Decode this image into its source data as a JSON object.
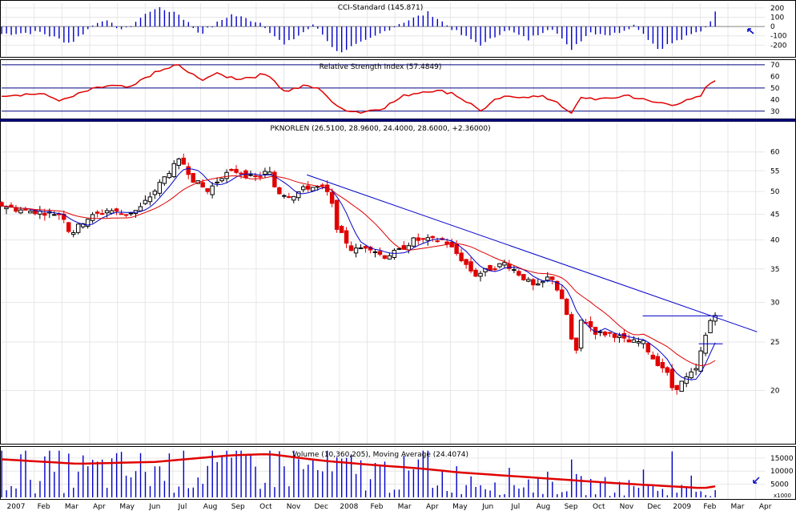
{
  "panels": {
    "cci": {
      "title": "CCI-Standard (145.871)",
      "ticks": [
        "200",
        "100",
        "0",
        "-100",
        "-200"
      ],
      "ylim": [
        -300,
        250
      ]
    },
    "rsi": {
      "title": "Relative Strength Index (57.4849)",
      "ticks": [
        "70",
        "60",
        "50",
        "40",
        "30"
      ],
      "ylim": [
        25,
        72
      ],
      "levels": [
        70,
        50,
        30
      ]
    },
    "price": {
      "title": "PKNORLEN (26.5100, 28.9600, 24.4000, 28.6000, +2.36000)",
      "ticks": [
        "60",
        "55",
        "50",
        "45",
        "40",
        "35",
        "30",
        "25",
        "20"
      ],
      "ylim": [
        16,
        65
      ],
      "scale": "log",
      "trendline": [
        [
          0.4,
          54
        ],
        [
          0.99,
          26.2
        ]
      ],
      "breakout_box": [
        [
          0.84,
          28.2
        ],
        [
          0.945,
          28.2
        ],
        [
          0.84,
          24.8
        ],
        [
          0.945,
          24.8
        ]
      ]
    },
    "volume": {
      "title": "Volume (10,360,205), Moving Average (24.4074)",
      "ticks": [
        "15000",
        "10000",
        "5000"
      ],
      "unit_label": "x1000",
      "ylim": [
        0,
        18000
      ]
    }
  },
  "x_axis": [
    "2007",
    "Feb",
    "Mar",
    "Apr",
    "May",
    "Jun",
    "Jul",
    "Aug",
    "Sep",
    "Oct",
    "Nov",
    "Dec",
    "2008",
    "Feb",
    "Mar",
    "Apr",
    "May",
    "Jun",
    "Jul",
    "Aug",
    "Sep",
    "Oct",
    "Nov",
    "Dec",
    "2009",
    "Feb",
    "Mar",
    "Apr"
  ],
  "colors": {
    "up": "#000000",
    "down": "#e00000",
    "ma_fast": "#0000c8",
    "ma_slow": "#e00000",
    "cci_bar": "#0000c8",
    "rsi_line": "#e00000",
    "volume_bar": "#0000c8",
    "volume_ma": "#e00000",
    "trendline": "#0000c8",
    "panel_border": "#000080",
    "grid": "#e6e6e6"
  },
  "chart_data": {
    "type": "candlestick",
    "price_anchors": [
      [
        0,
        47
      ],
      [
        0.02,
        46
      ],
      [
        0.05,
        45.5
      ],
      [
        0.08,
        45
      ],
      [
        0.09,
        41
      ],
      [
        0.11,
        44
      ],
      [
        0.14,
        46
      ],
      [
        0.16,
        45
      ],
      [
        0.18,
        46
      ],
      [
        0.2,
        50
      ],
      [
        0.22,
        55
      ],
      [
        0.235,
        58
      ],
      [
        0.25,
        53
      ],
      [
        0.27,
        50
      ],
      [
        0.29,
        54
      ],
      [
        0.31,
        55
      ],
      [
        0.33,
        53
      ],
      [
        0.35,
        55
      ],
      [
        0.36,
        50
      ],
      [
        0.38,
        49
      ],
      [
        0.4,
        51
      ],
      [
        0.42,
        51
      ],
      [
        0.43,
        49
      ],
      [
        0.44,
        42
      ],
      [
        0.46,
        38
      ],
      [
        0.48,
        39
      ],
      [
        0.5,
        37
      ],
      [
        0.52,
        38
      ],
      [
        0.54,
        40
      ],
      [
        0.56,
        40
      ],
      [
        0.58,
        40
      ],
      [
        0.6,
        37
      ],
      [
        0.62,
        34
      ],
      [
        0.64,
        35
      ],
      [
        0.66,
        36
      ],
      [
        0.68,
        34
      ],
      [
        0.7,
        32
      ],
      [
        0.72,
        34
      ],
      [
        0.735,
        30
      ],
      [
        0.745,
        27
      ],
      [
        0.75,
        22
      ],
      [
        0.76,
        28
      ],
      [
        0.78,
        26
      ],
      [
        0.8,
        26
      ],
      [
        0.82,
        25
      ],
      [
        0.84,
        25
      ],
      [
        0.855,
        23
      ],
      [
        0.87,
        22
      ],
      [
        0.88,
        20
      ],
      [
        0.895,
        21
      ],
      [
        0.91,
        22
      ],
      [
        0.92,
        25
      ],
      [
        0.93,
        28
      ],
      [
        0.935,
        28.6
      ]
    ],
    "rsi_anchors": [
      [
        0,
        44
      ],
      [
        0.05,
        45
      ],
      [
        0.08,
        39
      ],
      [
        0.11,
        47
      ],
      [
        0.14,
        52
      ],
      [
        0.17,
        50
      ],
      [
        0.19,
        60
      ],
      [
        0.23,
        70
      ],
      [
        0.26,
        57
      ],
      [
        0.28,
        62
      ],
      [
        0.31,
        58
      ],
      [
        0.35,
        62
      ],
      [
        0.37,
        47
      ],
      [
        0.4,
        52
      ],
      [
        0.42,
        48
      ],
      [
        0.44,
        33
      ],
      [
        0.47,
        29
      ],
      [
        0.5,
        33
      ],
      [
        0.53,
        44
      ],
      [
        0.56,
        48
      ],
      [
        0.59,
        46
      ],
      [
        0.61,
        38
      ],
      [
        0.63,
        30
      ],
      [
        0.65,
        41
      ],
      [
        0.68,
        43
      ],
      [
        0.71,
        42
      ],
      [
        0.73,
        38
      ],
      [
        0.745,
        26
      ],
      [
        0.76,
        42
      ],
      [
        0.79,
        40
      ],
      [
        0.82,
        44
      ],
      [
        0.85,
        38
      ],
      [
        0.88,
        36
      ],
      [
        0.9,
        39
      ],
      [
        0.915,
        42
      ],
      [
        0.925,
        52
      ],
      [
        0.935,
        57.5
      ]
    ],
    "cci_anchors": [
      [
        0,
        -80
      ],
      [
        0.05,
        -60
      ],
      [
        0.09,
        -180
      ],
      [
        0.13,
        80
      ],
      [
        0.16,
        -40
      ],
      [
        0.2,
        200
      ],
      [
        0.23,
        150
      ],
      [
        0.26,
        -80
      ],
      [
        0.3,
        130
      ],
      [
        0.34,
        40
      ],
      [
        0.37,
        -200
      ],
      [
        0.41,
        20
      ],
      [
        0.44,
        -280
      ],
      [
        0.48,
        -150
      ],
      [
        0.52,
        30
      ],
      [
        0.56,
        150
      ],
      [
        0.6,
        -80
      ],
      [
        0.63,
        -200
      ],
      [
        0.66,
        -30
      ],
      [
        0.69,
        -140
      ],
      [
        0.72,
        0
      ],
      [
        0.745,
        -250
      ],
      [
        0.77,
        -60
      ],
      [
        0.8,
        -90
      ],
      [
        0.83,
        20
      ],
      [
        0.86,
        -240
      ],
      [
        0.89,
        -140
      ],
      [
        0.92,
        -30
      ],
      [
        0.935,
        145.9
      ]
    ],
    "volume_ma_anchors": [
      [
        0,
        14500
      ],
      [
        0.1,
        12800
      ],
      [
        0.2,
        13500
      ],
      [
        0.3,
        16000
      ],
      [
        0.35,
        16500
      ],
      [
        0.42,
        14000
      ],
      [
        0.48,
        12500
      ],
      [
        0.55,
        11000
      ],
      [
        0.6,
        9500
      ],
      [
        0.7,
        7500
      ],
      [
        0.8,
        5500
      ],
      [
        0.86,
        4500
      ],
      [
        0.92,
        3500
      ],
      [
        0.935,
        4200
      ]
    ],
    "candle_count": 150
  }
}
